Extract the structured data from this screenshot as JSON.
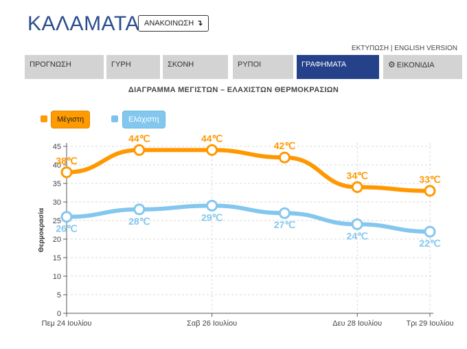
{
  "header": {
    "city": "ΚΑΛΑΜΑΤΑ",
    "announce_label": "ΑΝΑΚΟΙΝΩΣΗ",
    "announce_icon": "arrow-down-icon",
    "print_label": "ΕΚΤΥΠΩΣΗ",
    "separator": "|",
    "english_label": "ENGLISH VERSION"
  },
  "tabs": [
    {
      "label": "ΠΡΟΓΝΩΣΗ",
      "active": false
    },
    {
      "label": "ΓΥΡΗ",
      "active": false
    },
    {
      "label": "ΣΚΟΝΗ",
      "active": false
    },
    {
      "label": "ΡΥΠΟΙ",
      "active": false
    },
    {
      "label": "ΓΡΑΦΗΜΑΤΑ",
      "active": true
    },
    {
      "label": "ΕΙΚΟΝΙΔΙΑ",
      "active": false,
      "icon": "gear-icon"
    }
  ],
  "chart_title": "ΔΙΑΓΡΑΜΜΑ ΜΕΓΙΣΤΩΝ – ΕΛΑΧΙΣΤΩΝ ΘΕΡΜΟΚΡΑΣΙΩΝ",
  "legend": {
    "max_label": "Μέγιστη",
    "min_label": "Ελάχιστη"
  },
  "colors": {
    "max": "#ff9800",
    "min": "#83c7ee",
    "active_tab": "#25418a",
    "city": "#2b4c8c"
  },
  "chart_data": {
    "type": "line",
    "ylabel": "Θερμοκρασία",
    "ylim": [
      0,
      45
    ],
    "yticks": [
      0,
      5,
      10,
      15,
      20,
      25,
      30,
      35,
      40,
      45
    ],
    "x": [
      0,
      1,
      2,
      3,
      4,
      5
    ],
    "xtick_labels": [
      "Πεμ 24 Ιουλίου",
      "Σαβ 26 Ιουλίου",
      "Δευ 28 Ιουλίου",
      "Τρι 29 Ιουλίου"
    ],
    "xtick_positions": [
      0,
      2,
      4,
      5
    ],
    "grid": true,
    "legend_position": "top-left",
    "series": [
      {
        "name": "Μέγιστη",
        "color": "#ff9800",
        "values": [
          38,
          44,
          44,
          42,
          34,
          33
        ],
        "labels": [
          "38℃",
          "44℃",
          "44℃",
          "42℃",
          "34℃",
          "33℃"
        ]
      },
      {
        "name": "Ελάχιστη",
        "color": "#83c7ee",
        "values": [
          26,
          28,
          29,
          27,
          24,
          22
        ],
        "labels": [
          "26℃",
          "28℃",
          "29℃",
          "27℃",
          "24℃",
          "22℃"
        ]
      }
    ]
  }
}
